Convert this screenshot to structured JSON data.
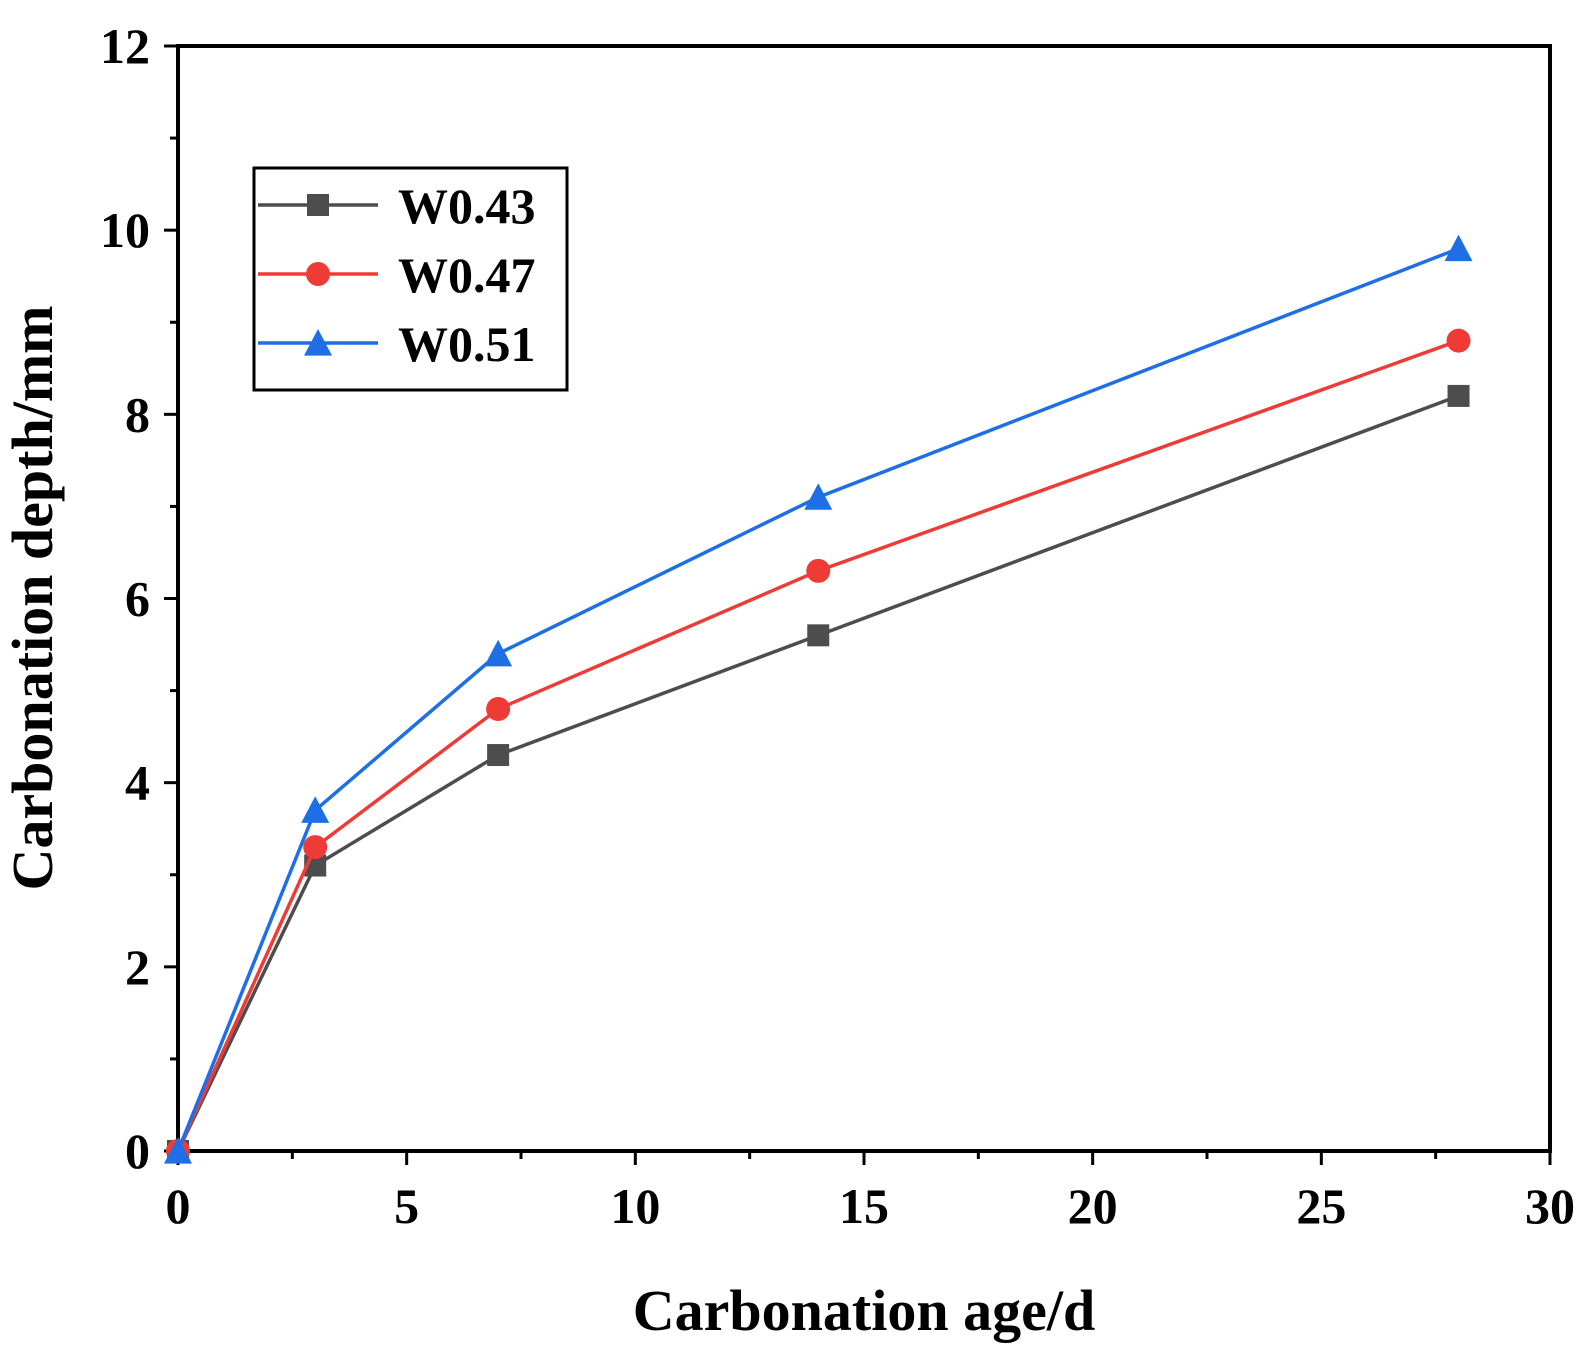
{
  "chart_data": {
    "type": "line",
    "title": "",
    "xlabel": "Carbonation age/d",
    "ylabel": "Carbonation depth/mm",
    "xlim": [
      0,
      30
    ],
    "ylim": [
      0,
      12
    ],
    "xticks": [
      0,
      5,
      10,
      15,
      20,
      25,
      30
    ],
    "yticks": [
      0,
      2,
      4,
      6,
      8,
      10,
      12
    ],
    "x": [
      0,
      3,
      7,
      14,
      28
    ],
    "series": [
      {
        "name": "W0.43",
        "marker": "square",
        "color": "#4d4d4d",
        "values": [
          0,
          3.1,
          4.3,
          5.6,
          8.2
        ]
      },
      {
        "name": "W0.47",
        "marker": "circle",
        "color": "#ef3b36",
        "values": [
          0,
          3.3,
          4.8,
          6.3,
          8.8
        ]
      },
      {
        "name": "W0.51",
        "marker": "triangle",
        "color": "#1e6fe6",
        "values": [
          0,
          3.7,
          5.4,
          7.1,
          9.8
        ]
      }
    ],
    "legend_position": "top-left",
    "grid": false
  }
}
